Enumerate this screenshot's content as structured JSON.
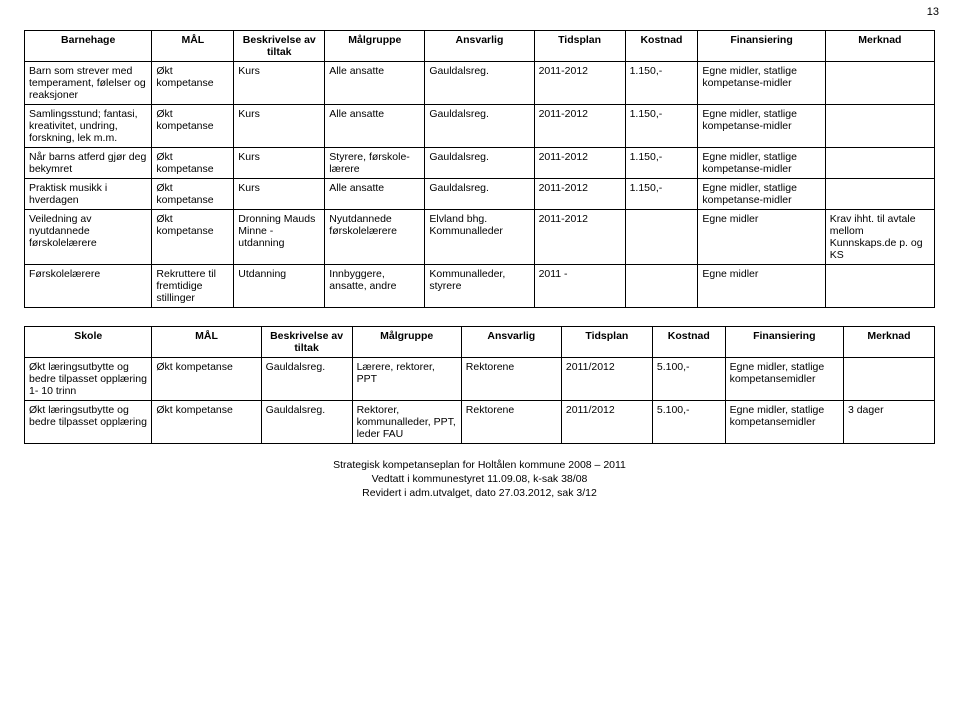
{
  "page_number": "13",
  "table1": {
    "headers": [
      "Barnehage",
      "MÅL",
      "Beskrivelse av tiltak",
      "Målgruppe",
      "Ansvarlig",
      "Tidsplan",
      "Kostnad",
      "Finansiering",
      "Merknad"
    ],
    "col_widths": [
      "14%",
      "9%",
      "10%",
      "11%",
      "12%",
      "10%",
      "8%",
      "14%",
      "12%"
    ],
    "rows": [
      {
        "c": [
          "Barn som strever med temperament, følelser og reaksjoner",
          "Økt kompetanse",
          "Kurs",
          "Alle ansatte",
          "Gauldalsreg.",
          "2011-2012",
          "1.150,-",
          "Egne midler, statlige kompetanse-midler",
          ""
        ]
      },
      {
        "c": [
          "Samlingsstund; fantasi, kreativitet, undring, forskning, lek m.m.",
          "Økt kompetanse",
          "Kurs",
          "Alle ansatte",
          "Gauldalsreg.",
          "2011-2012",
          "1.150,-",
          "Egne midler, statlige kompetanse-midler",
          ""
        ]
      },
      {
        "c": [
          "Når barns atferd gjør deg bekymret",
          "Økt kompetanse",
          "Kurs",
          "Styrere, førskole-lærere",
          "Gauldalsreg.",
          "2011-2012",
          "1.150,-",
          "Egne midler, statlige kompetanse-midler",
          ""
        ]
      },
      {
        "c": [
          "Praktisk musikk i hverdagen",
          "Økt kompetanse",
          "Kurs",
          "Alle ansatte",
          "Gauldalsreg.",
          "2011-2012",
          "1.150,-",
          "Egne midler, statlige kompetanse-midler",
          ""
        ]
      },
      {
        "c": [
          "Veiledning av nyutdannede førskolelærere",
          "Økt kompetanse",
          "Dronning Mauds Minne - utdanning",
          "Nyutdannede førskolelærere",
          "Elvland bhg. Kommunalleder",
          "2011-2012",
          "",
          "Egne midler",
          "Krav ihht. til avtale mellom Kunnskaps.de p. og KS"
        ]
      },
      {
        "c": [
          "Førskolelærere",
          "Rekruttere til fremtidige stillinger",
          "Utdanning",
          "Innbyggere, ansatte, andre",
          "Kommunalleder, styrere",
          "2011 -",
          "",
          "Egne midler",
          ""
        ]
      }
    ]
  },
  "table2": {
    "headers": [
      "Skole",
      "MÅL",
      "Beskrivelse av tiltak",
      "Målgruppe",
      "Ansvarlig",
      "Tidsplan",
      "Kostnad",
      "Finansiering",
      "Merknad"
    ],
    "col_widths": [
      "14%",
      "12%",
      "10%",
      "12%",
      "11%",
      "10%",
      "8%",
      "13%",
      "10%"
    ],
    "rows": [
      {
        "c": [
          "Økt læringsutbytte og bedre tilpasset opplæring 1- 10 trinn",
          "Økt kompetanse",
          "Gauldalsreg.",
          "Lærere, rektorer, PPT",
          "Rektorene",
          "2011/2012",
          "5.100,-",
          "Egne midler, statlige kompetansemidler",
          ""
        ]
      },
      {
        "c": [
          "Økt læringsutbytte og bedre tilpasset opplæring",
          "Økt kompetanse",
          "Gauldalsreg.",
          "Rektorer, kommunalleder, PPT, leder FAU",
          "Rektorene",
          "2011/2012",
          "5.100,-",
          "Egne midler, statlige kompetansemidler",
          "3 dager"
        ]
      }
    ]
  },
  "footer": {
    "line1": "Strategisk kompetanseplan for Holtålen kommune 2008 – 2011",
    "line2": "Vedtatt i kommunestyret 11.09.08, k-sak 38/08",
    "line3": "Revidert i adm.utvalget, dato 27.03.2012, sak 3/12"
  },
  "colors": {
    "text": "#000000",
    "background": "#ffffff",
    "border": "#000000"
  },
  "typography": {
    "body_font_size_pt": 10.5,
    "page_number_font_size_pt": 11,
    "font_family": "Arial"
  }
}
